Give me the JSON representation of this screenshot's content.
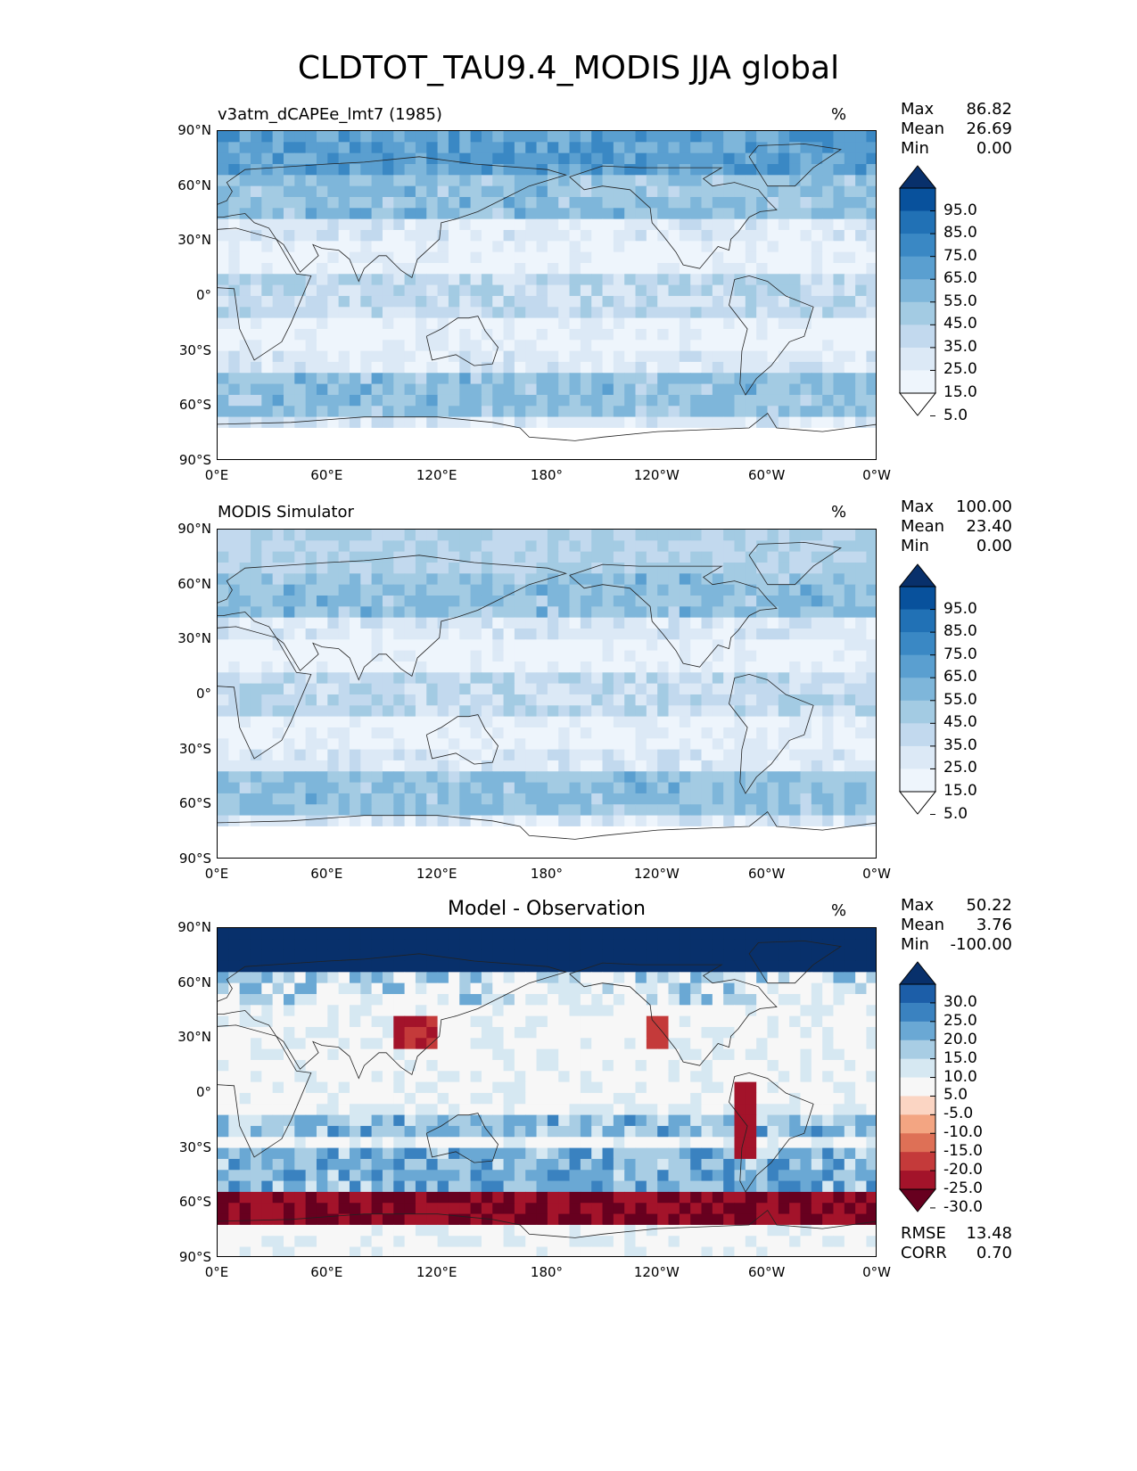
{
  "title": "CLDTOT_TAU9.4_MODIS JJA global",
  "units": "%",
  "lat_labels": [
    "90°N",
    "60°N",
    "30°N",
    "0°",
    "30°S",
    "60°S",
    "90°S"
  ],
  "lon_labels": [
    "0°E",
    "60°E",
    "120°E",
    "180°",
    "120°W",
    "60°W",
    "0°W"
  ],
  "panels": [
    {
      "title": "v3atm_dCAPEe_lmt7 (1985)",
      "stats": {
        "max_label": "Max",
        "max": "86.82",
        "mean_label": "Mean",
        "mean": "26.69",
        "min_label": "Min",
        "min": "0.00"
      },
      "colorbar": {
        "levels": [
          "95.0",
          "85.0",
          "75.0",
          "65.0",
          "55.0",
          "45.0",
          "35.0",
          "25.0",
          "15.0",
          "5.0"
        ],
        "colors": [
          "#08306b",
          "#08519c",
          "#2171b5",
          "#3a88c4",
          "#5a9fd0",
          "#7eb6da",
          "#a3cbe3",
          "#c2d9ee",
          "#dce9f6",
          "#eef5fc",
          "#ffffff"
        ]
      },
      "field": "model"
    },
    {
      "title": "MODIS Simulator",
      "stats": {
        "max_label": "Max",
        "max": "100.00",
        "mean_label": "Mean",
        "mean": "23.40",
        "min_label": "Min",
        "min": "0.00"
      },
      "colorbar": {
        "levels": [
          "95.0",
          "85.0",
          "75.0",
          "65.0",
          "55.0",
          "45.0",
          "35.0",
          "25.0",
          "15.0",
          "5.0"
        ],
        "colors": [
          "#08306b",
          "#08519c",
          "#2171b5",
          "#3a88c4",
          "#5a9fd0",
          "#7eb6da",
          "#a3cbe3",
          "#c2d9ee",
          "#dce9f6",
          "#eef5fc",
          "#ffffff"
        ]
      },
      "field": "obs"
    },
    {
      "title": "Model - Observation",
      "stats": {
        "max_label": "Max",
        "max": "50.22",
        "mean_label": "Mean",
        "mean": "3.76",
        "min_label": "Min",
        "min": "-100.00"
      },
      "colorbar": {
        "levels": [
          "30.0",
          "25.0",
          "20.0",
          "15.0",
          "10.0",
          "5.0",
          "-5.0",
          "-10.0",
          "-15.0",
          "-20.0",
          "-25.0",
          "-30.0"
        ],
        "colors": [
          "#08306b",
          "#1c5ea8",
          "#3a82c0",
          "#6aa8d4",
          "#a8cde4",
          "#d6e8f2",
          "#f7f7f7",
          "#fbd5c3",
          "#f3a582",
          "#de7056",
          "#c43a3a",
          "#a3132a",
          "#67001f"
        ]
      },
      "metrics": {
        "rmse_label": "RMSE",
        "rmse": "13.48",
        "corr_label": "CORR",
        "corr": "0.70"
      },
      "field": "diff"
    }
  ]
}
